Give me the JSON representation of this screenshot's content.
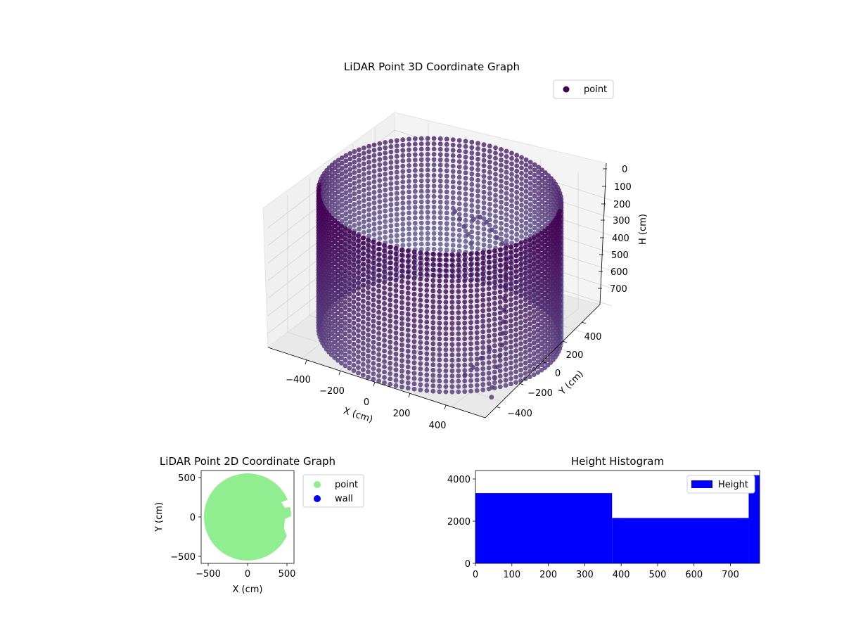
{
  "chart_data": [
    {
      "type": "scatter",
      "projection": "3d",
      "title": "LiDAR Point 3D Coordinate Graph",
      "xlabel": "X (cm)",
      "ylabel": "Y (cm)",
      "zlabel": "H (cm)",
      "xticks": [
        "−400",
        "−200",
        "0",
        "200",
        "400"
      ],
      "yticks": [
        "−400",
        "−200",
        "0",
        "200",
        "400"
      ],
      "zticks": [
        "0",
        "100",
        "200",
        "300",
        "400",
        "500",
        "600",
        "700"
      ],
      "xlim": [
        -580,
        580
      ],
      "ylim": [
        -580,
        580
      ],
      "zlim": [
        0,
        780
      ],
      "z_inverted": true,
      "grid": true,
      "legend": {
        "position": "top-right",
        "entries": [
          "point"
        ]
      },
      "colors": {
        "near": "#440154",
        "far": "#6d79a6"
      },
      "series": [
        {
          "name": "point",
          "shape": "cylinder",
          "radius_cm": 560,
          "height_range_cm": [
            0,
            780
          ],
          "columns": 120,
          "rows": 27,
          "interior_points": [
            {
              "x": -60,
              "y": 240,
              "h": 220
            },
            {
              "x": -40,
              "y": 250,
              "h": 260
            },
            {
              "x": -20,
              "y": 255,
              "h": 300
            },
            {
              "x": 0,
              "y": 260,
              "h": 340
            },
            {
              "x": 20,
              "y": 250,
              "h": 380
            },
            {
              "x": 40,
              "y": 240,
              "h": 230
            },
            {
              "x": 80,
              "y": 230,
              "h": 200
            },
            {
              "x": 120,
              "y": 220,
              "h": 210
            },
            {
              "x": 160,
              "y": 200,
              "h": 230
            },
            {
              "x": 200,
              "y": 180,
              "h": 250
            },
            {
              "x": 240,
              "y": 160,
              "h": 260
            },
            {
              "x": 280,
              "y": 130,
              "h": 240
            },
            {
              "x": 300,
              "y": 100,
              "h": 300
            },
            {
              "x": 320,
              "y": 60,
              "h": 320
            },
            {
              "x": 340,
              "y": 20,
              "h": 350
            },
            {
              "x": 360,
              "y": -20,
              "h": 380
            },
            {
              "x": 380,
              "y": -60,
              "h": 420
            },
            {
              "x": 400,
              "y": -100,
              "h": 460
            },
            {
              "x": 420,
              "y": -140,
              "h": 500
            },
            {
              "x": 440,
              "y": -180,
              "h": 540
            },
            {
              "x": 460,
              "y": -220,
              "h": 580
            },
            {
              "x": 470,
              "y": -260,
              "h": 620
            },
            {
              "x": 480,
              "y": -300,
              "h": 660
            },
            {
              "x": 490,
              "y": -340,
              "h": 700
            },
            {
              "x": 500,
              "y": -380,
              "h": 730
            },
            {
              "x": 520,
              "y": -420,
              "h": 760
            },
            {
              "x": 380,
              "y": -200,
              "h": 640
            },
            {
              "x": 360,
              "y": -240,
              "h": 680
            },
            {
              "x": 340,
              "y": -280,
              "h": 720
            },
            {
              "x": 320,
              "y": -320,
              "h": 750
            }
          ]
        }
      ]
    },
    {
      "type": "scatter",
      "title": "LiDAR Point 2D Coordinate Graph",
      "xlabel": "X (cm)",
      "ylabel": "Y (cm)",
      "xticks": [
        "−500",
        "0",
        "500"
      ],
      "yticks": [
        "−500",
        "0",
        "500"
      ],
      "xlim": [
        -590,
        590
      ],
      "ylim": [
        -590,
        590
      ],
      "legend": {
        "position": "outside-right",
        "entries": [
          "point",
          "wall"
        ]
      },
      "series": [
        {
          "name": "point",
          "color": "#90ee90",
          "shape": "filled-disc",
          "center": [
            0,
            0
          ],
          "radius_cm": 560
        },
        {
          "name": "wall",
          "color": "#0000ff",
          "points": []
        }
      ]
    },
    {
      "type": "bar",
      "subtype": "histogram",
      "title": "Height Histogram",
      "xticks": [
        "0",
        "100",
        "200",
        "300",
        "400",
        "500",
        "600",
        "700"
      ],
      "yticks": [
        "0",
        "2000",
        "4000"
      ],
      "xlim": [
        0,
        780
      ],
      "ylim": [
        0,
        4400
      ],
      "color": "#0000ff",
      "legend": {
        "position": "top-right",
        "entries": [
          "Height"
        ]
      },
      "series": [
        {
          "name": "Height",
          "bins": [
            {
              "start": 0,
              "end": 375,
              "count": 3330
            },
            {
              "start": 375,
              "end": 750,
              "count": 2150
            },
            {
              "start": 750,
              "end": 780,
              "count": 4180
            }
          ]
        }
      ]
    }
  ]
}
